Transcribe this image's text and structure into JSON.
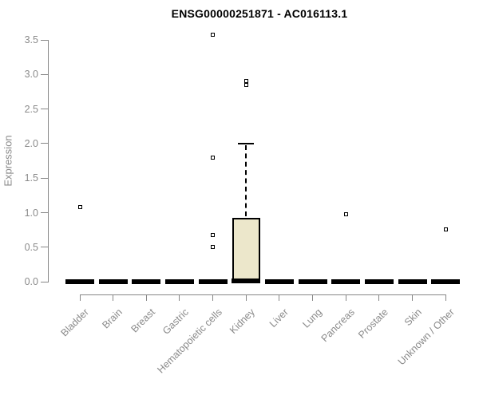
{
  "chart_data": {
    "type": "box",
    "title": "ENSG00000251871 - AC016113.1",
    "ylabel": "Expression",
    "xlabel": "",
    "ylim": [
      0,
      3.5
    ],
    "ytick_labels": [
      "0.0",
      "0.5",
      "1.0",
      "1.5",
      "2.0",
      "2.5",
      "3.0",
      "3.5"
    ],
    "grid": false,
    "legend": false,
    "categories": [
      "Bladder",
      "Brain",
      "Breast",
      "Gastric",
      "Hematopoietic cells",
      "Kidney",
      "Liver",
      "Lung",
      "Pancreas",
      "Prostate",
      "Skin",
      "Unknown / Other"
    ],
    "series": [
      {
        "category": "Bladder",
        "median": 0,
        "q1": 0,
        "q3": 0,
        "whisker_low": 0,
        "whisker_high": 0,
        "outliers": [
          1.08
        ]
      },
      {
        "category": "Brain",
        "median": 0,
        "q1": 0,
        "q3": 0,
        "whisker_low": 0,
        "whisker_high": 0,
        "outliers": []
      },
      {
        "category": "Breast",
        "median": 0,
        "q1": 0,
        "q3": 0,
        "whisker_low": 0,
        "whisker_high": 0,
        "outliers": []
      },
      {
        "category": "Gastric",
        "median": 0,
        "q1": 0,
        "q3": 0,
        "whisker_low": 0,
        "whisker_high": 0,
        "outliers": []
      },
      {
        "category": "Hematopoietic cells",
        "median": 0,
        "q1": 0,
        "q3": 0,
        "whisker_low": 0,
        "whisker_high": 0,
        "outliers": [
          3.58,
          1.8,
          0.68,
          0.51
        ]
      },
      {
        "category": "Kidney",
        "median": 0.02,
        "q1": 0.02,
        "q3": 0.93,
        "whisker_low": 0.02,
        "whisker_high": 2.0,
        "outliers": [
          2.9,
          2.85
        ]
      },
      {
        "category": "Liver",
        "median": 0,
        "q1": 0,
        "q3": 0,
        "whisker_low": 0,
        "whisker_high": 0,
        "outliers": []
      },
      {
        "category": "Lung",
        "median": 0,
        "q1": 0,
        "q3": 0,
        "whisker_low": 0,
        "whisker_high": 0,
        "outliers": []
      },
      {
        "category": "Pancreas",
        "median": 0,
        "q1": 0,
        "q3": 0,
        "whisker_low": 0,
        "whisker_high": 0,
        "outliers": [
          0.98
        ]
      },
      {
        "category": "Prostate",
        "median": 0,
        "q1": 0,
        "q3": 0,
        "whisker_low": 0,
        "whisker_high": 0,
        "outliers": []
      },
      {
        "category": "Skin",
        "median": 0,
        "q1": 0,
        "q3": 0,
        "whisker_low": 0,
        "whisker_high": 0,
        "outliers": []
      },
      {
        "category": "Unknown / Other",
        "median": 0,
        "q1": 0,
        "q3": 0,
        "whisker_low": 0,
        "whisker_high": 0,
        "outliers": [
          0.76
        ]
      }
    ],
    "colors": {
      "box_fill": "#ece7cb",
      "box_border": "#000000",
      "median": "#000000",
      "whisker": "#000000",
      "outlier_border": "#000000",
      "axis": "#878787",
      "tick_label": "#8a8a8a",
      "title": "#000000",
      "background": "#ffffff"
    }
  }
}
